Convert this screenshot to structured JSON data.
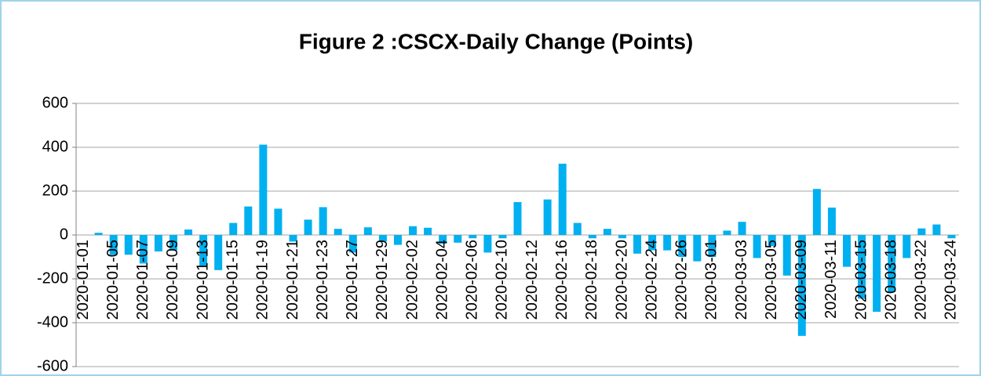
{
  "chart_data": {
    "type": "bar",
    "title": "Figure 2 :CSCX-Daily Change (Points)",
    "categories": [
      "2020-01-01",
      null,
      "2020-01-05",
      null,
      "2020-01-07",
      null,
      "2020-01-09",
      null,
      "2020-01-13",
      null,
      "2020-01-15",
      null,
      "2020-01-19",
      null,
      "2020-01-21",
      null,
      "2020-01-23",
      null,
      "2020-01-27",
      null,
      "2020-01-29",
      null,
      "2020-02-02",
      null,
      "2020-02-04",
      null,
      "2020-02-06",
      null,
      "2020-02-10",
      null,
      "2020-02-12",
      null,
      "2020-02-16",
      null,
      "2020-02-18",
      null,
      "2020-02-20",
      null,
      "2020-02-24",
      null,
      "2020-02-26",
      null,
      "2020-03-01",
      null,
      "2020-03-03",
      null,
      "2020-03-05",
      null,
      "2020-03-09",
      null,
      "2020-03-11",
      null,
      "2020-03-15",
      null,
      "2020-03-18",
      null,
      "2020-03-22",
      null,
      "2020-03-24"
    ],
    "values": [
      0,
      10,
      -90,
      -90,
      -130,
      -75,
      -70,
      25,
      -140,
      -160,
      55,
      130,
      412,
      120,
      -30,
      70,
      127,
      28,
      -80,
      35,
      -30,
      -45,
      40,
      33,
      -40,
      -35,
      -15,
      -80,
      -15,
      150,
      0,
      162,
      325,
      55,
      -15,
      28,
      -15,
      -85,
      -70,
      -70,
      -100,
      -120,
      -100,
      20,
      60,
      -105,
      -50,
      -185,
      -460,
      210,
      125,
      -145,
      -290,
      -350,
      -260,
      -105,
      30,
      48,
      -15
    ],
    "color": "#00b0f0",
    "ylim": [
      -600,
      600
    ],
    "yticks": [
      -600,
      -400,
      -200,
      0,
      200,
      400,
      600
    ],
    "grid": true
  }
}
